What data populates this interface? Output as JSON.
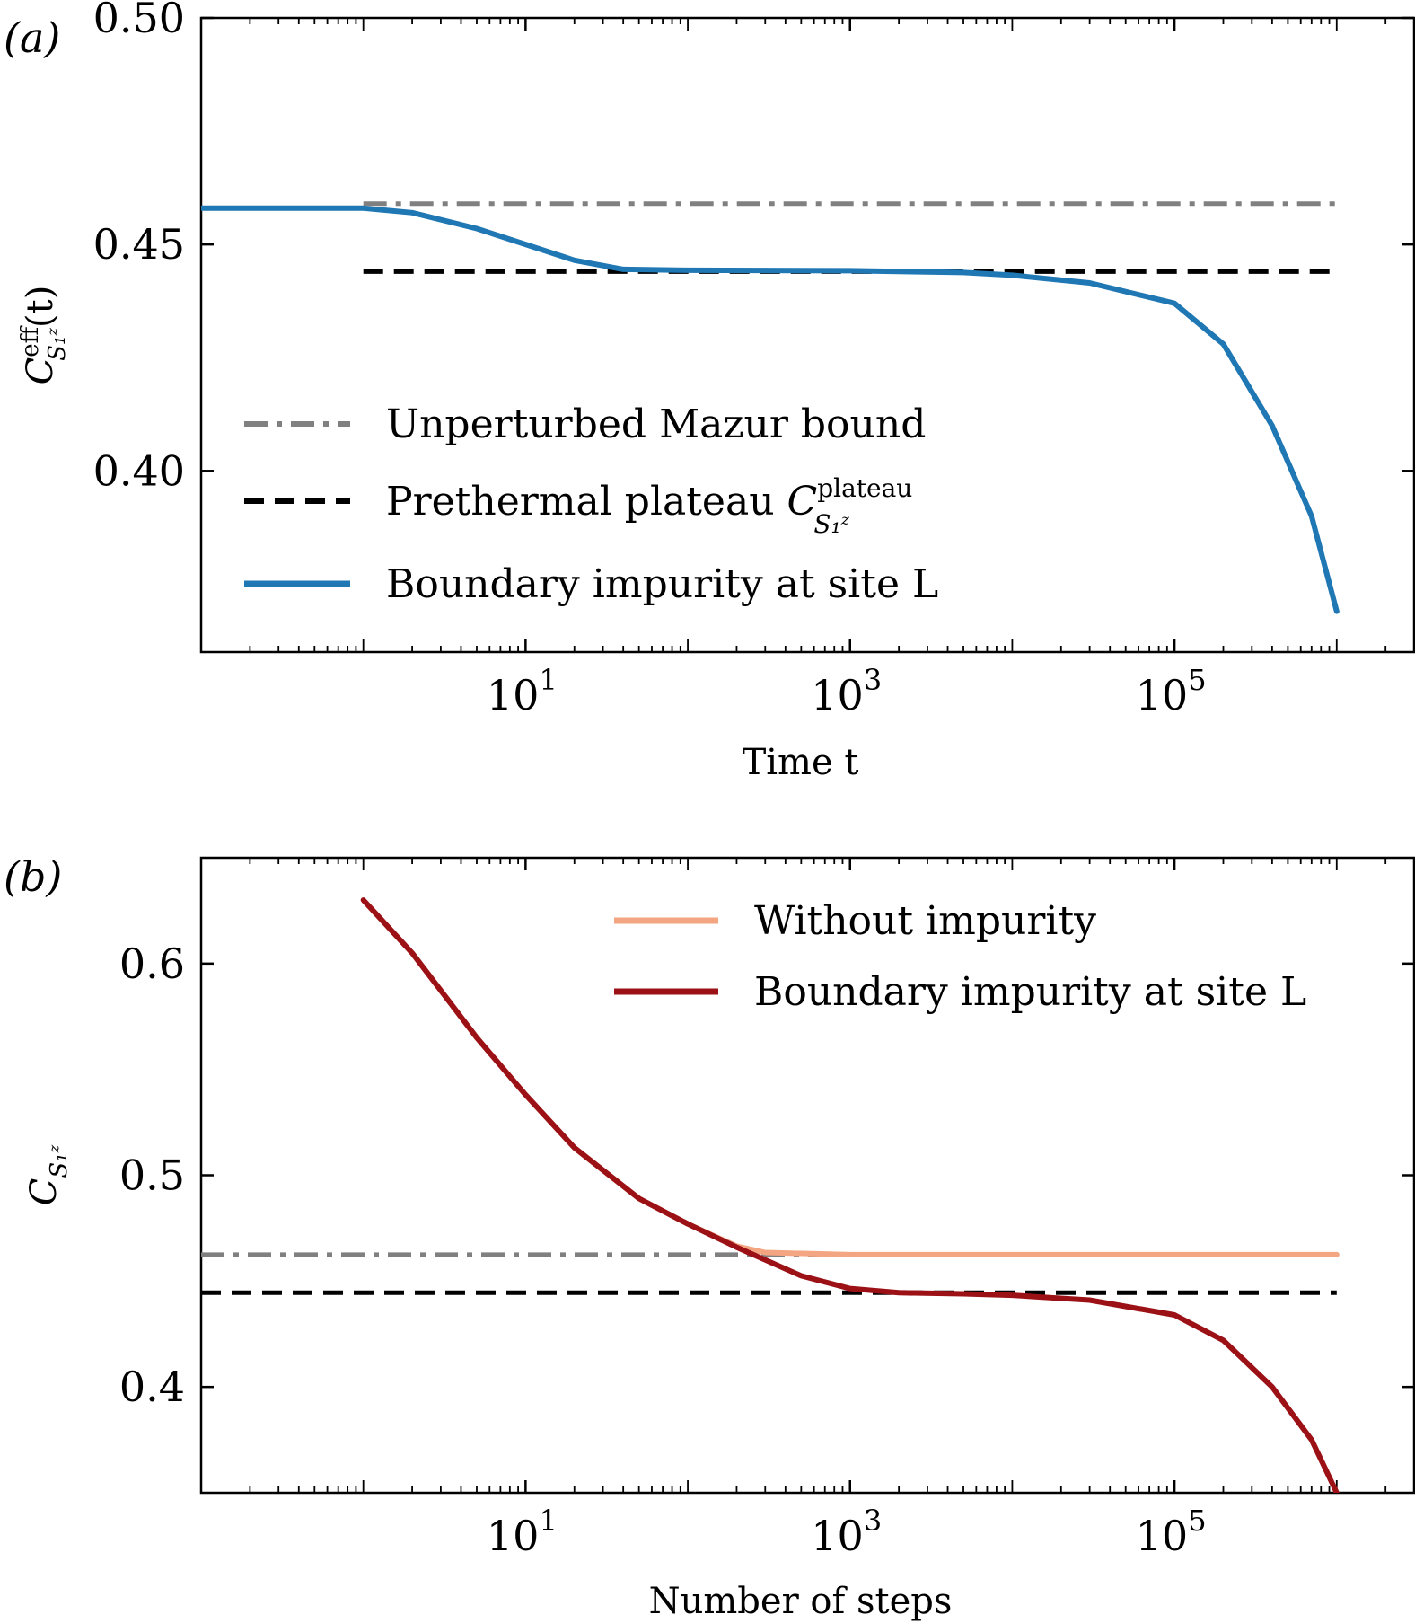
{
  "chart_data": [
    {
      "id": "a",
      "type": "line",
      "panel_label": "(a)",
      "xlabel": "Time t",
      "ylabel": "C^eff_{S_1^z}(t)",
      "ylabel_main": "C",
      "ylabel_sup": "eff",
      "ylabel_sub": "S₁ᶻ",
      "ylabel_tail": "(t)",
      "xscale": "log",
      "xlim": [
        0.1,
        3000000
      ],
      "ylim": [
        0.36,
        0.5
      ],
      "x_ticks": [
        {
          "value": 10,
          "label": "10",
          "exp": "1"
        },
        {
          "value": 1000,
          "label": "10",
          "exp": "3"
        },
        {
          "value": 100000,
          "label": "10",
          "exp": "5"
        }
      ],
      "y_ticks": [
        {
          "value": 0.4,
          "label": "0.40"
        },
        {
          "value": 0.45,
          "label": "0.45"
        },
        {
          "value": 0.5,
          "label": "0.50"
        }
      ],
      "legend_position": "center-left",
      "series": [
        {
          "name": "Unperturbed Mazur bound",
          "style": "dashdot",
          "color": "#808080",
          "x": [
            1,
            1000000
          ],
          "y": [
            0.459,
            0.459
          ]
        },
        {
          "name": "Prethermal plateau",
          "legend_sup": "plateau",
          "legend_sub": "S₁ᶻ",
          "style": "dashed",
          "color": "#000000",
          "x": [
            1,
            1000000
          ],
          "y": [
            0.444,
            0.444
          ]
        },
        {
          "name": "Boundary impurity at site L",
          "style": "solid",
          "color": "#1f77b4",
          "x": [
            0.1,
            1,
            2,
            5,
            10,
            20,
            40,
            100,
            1000,
            5000,
            10000,
            30000,
            100000,
            200000,
            400000,
            700000,
            1000000
          ],
          "y": [
            0.458,
            0.458,
            0.457,
            0.4535,
            0.45,
            0.4465,
            0.4445,
            0.4443,
            0.4442,
            0.4438,
            0.4432,
            0.4415,
            0.437,
            0.428,
            0.41,
            0.39,
            0.369
          ]
        }
      ]
    },
    {
      "id": "b",
      "type": "line",
      "panel_label": "(b)",
      "xlabel": "Number of steps",
      "ylabel": "C_{S_1^z}",
      "ylabel_main": "C",
      "ylabel_sub": "S₁ᶻ",
      "xscale": "log",
      "xlim": [
        0.1,
        3000000
      ],
      "ylim": [
        0.35,
        0.65
      ],
      "x_ticks": [
        {
          "value": 10,
          "label": "10",
          "exp": "1"
        },
        {
          "value": 1000,
          "label": "10",
          "exp": "3"
        },
        {
          "value": 100000,
          "label": "10",
          "exp": "5"
        }
      ],
      "y_ticks": [
        {
          "value": 0.4,
          "label": "0.4"
        },
        {
          "value": 0.5,
          "label": "0.5"
        },
        {
          "value": 0.6,
          "label": "0.6"
        }
      ],
      "legend_position": "top-right",
      "series": [
        {
          "name": "Mazur bound",
          "in_legend": false,
          "style": "dashdot",
          "color": "#808080",
          "x": [
            0.1,
            1000000
          ],
          "y": [
            0.4625,
            0.4625
          ]
        },
        {
          "name": "Prethermal plateau",
          "in_legend": false,
          "style": "dashed",
          "color": "#000000",
          "x": [
            0.1,
            1000000
          ],
          "y": [
            0.4445,
            0.4445
          ]
        },
        {
          "name": "Without impurity",
          "style": "solid",
          "color": "#f4a582",
          "x": [
            1,
            2,
            5,
            10,
            20,
            50,
            100,
            200,
            300,
            1000,
            10000,
            100000,
            1000000
          ],
          "y": [
            0.63,
            0.605,
            0.565,
            0.538,
            0.513,
            0.489,
            0.477,
            0.4665,
            0.4635,
            0.4625,
            0.4625,
            0.4625,
            0.4625
          ]
        },
        {
          "name": "Boundary impurity at site L",
          "style": "solid",
          "color": "#9b1116",
          "x": [
            1,
            2,
            5,
            10,
            20,
            50,
            100,
            200,
            500,
            1000,
            2000,
            5000,
            10000,
            30000,
            100000,
            200000,
            400000,
            700000,
            1000000
          ],
          "y": [
            0.63,
            0.605,
            0.565,
            0.538,
            0.513,
            0.489,
            0.477,
            0.466,
            0.4525,
            0.4465,
            0.4445,
            0.444,
            0.4433,
            0.441,
            0.434,
            0.422,
            0.4,
            0.375,
            0.35
          ]
        }
      ]
    }
  ]
}
